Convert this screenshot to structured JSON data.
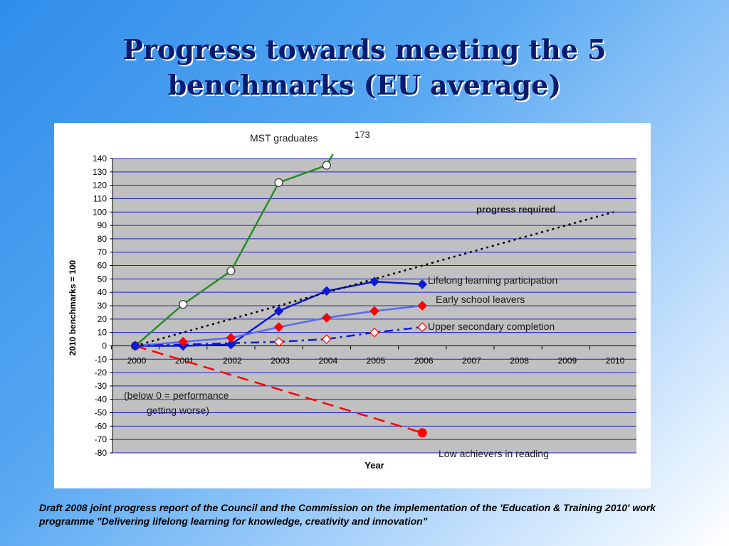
{
  "slide": {
    "title": "Progress towards meeting the 5 benchmarks (EU average)",
    "footnote": "Draft 2008 joint progress report of the Council and the Commission on the implementation of the 'Education & Training 2010' work programme \"Delivering lifelong learning for knowledge, creativity and innovation\""
  },
  "chart_data": {
    "type": "line",
    "xlabel": "Year",
    "ylabel": "2010 benchmarks = 100",
    "categories": [
      "2000",
      "2001",
      "2002",
      "2003",
      "2004",
      "2005",
      "2006",
      "2007",
      "2008",
      "2009",
      "2010"
    ],
    "ylim": [
      -80,
      140
    ],
    "yticks": [
      140,
      130,
      120,
      110,
      100,
      90,
      80,
      70,
      60,
      50,
      40,
      30,
      20,
      10,
      0,
      -10,
      -20,
      -30,
      -40,
      -50,
      -60,
      -70,
      -80
    ],
    "grid": true,
    "plot_background": "#c0c0c0",
    "grid_color": "#1f1fd6",
    "series": [
      {
        "name": "MST graduates",
        "color": "#2a8a2a",
        "dash": "solid",
        "marker": "circle-open",
        "x": [
          "2000",
          "2001",
          "2002",
          "2003",
          "2004"
        ],
        "values": [
          0,
          31,
          56,
          122,
          135
        ],
        "continues_to": {
          "x": "2005",
          "value": 173
        }
      },
      {
        "name": "Lifelong learning participation",
        "color": "#0a1ad6",
        "dash": "solid",
        "marker": "diamond-filled",
        "x": [
          "2000",
          "2001",
          "2002",
          "2003",
          "2004",
          "2005",
          "2006"
        ],
        "values": [
          0,
          0,
          1,
          26,
          41,
          48,
          46
        ]
      },
      {
        "name": "Early school leavers",
        "color": "#5a6af0",
        "dash": "solid",
        "marker": "diamond-filled-red",
        "x": [
          "2000",
          "2001",
          "2002",
          "2003",
          "2004",
          "2005",
          "2006"
        ],
        "values": [
          0,
          3,
          6,
          14,
          21,
          26,
          30
        ]
      },
      {
        "name": "Upper secondary completion",
        "color": "#0a1ad6",
        "dash": "dash-dot",
        "marker": "diamond-open-red",
        "x": [
          "2000",
          "2001",
          "2002",
          "2003",
          "2004",
          "2005",
          "2006"
        ],
        "values": [
          0,
          null,
          null,
          3,
          5,
          10,
          14
        ]
      },
      {
        "name": "Low achievers in reading",
        "color": "#ff0000",
        "dash": "long-dash",
        "marker": "circle-filled",
        "x": [
          "2000",
          "2006"
        ],
        "values": [
          0,
          -65
        ]
      },
      {
        "name": "progress required",
        "color": "#000000",
        "dash": "dotted",
        "marker": "none",
        "x": [
          "2000",
          "2010"
        ],
        "values": [
          0,
          100
        ]
      }
    ],
    "annotations": [
      {
        "text": "MST graduates"
      },
      {
        "text": "173"
      },
      {
        "text": "progress required"
      },
      {
        "text": "Lifelong learning participation"
      },
      {
        "text": "Early school leavers"
      },
      {
        "text": "Upper secondary completion"
      },
      {
        "text": "Low achievers in reading"
      },
      {
        "text": "(below 0 = performance"
      },
      {
        "text": "getting worse)"
      }
    ]
  }
}
